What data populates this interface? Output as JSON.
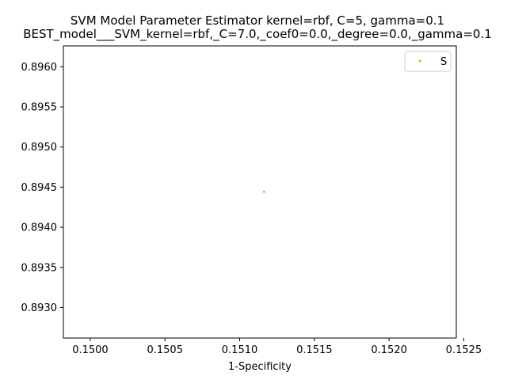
{
  "chart_data": {
    "type": "scatter",
    "title": "SVM Model Parameter Estimator kernel=rbf, C=5, gamma=0.1",
    "subtitle": "BEST_model___SVM_kernel=rbf,_C=7.0,_coef0=0.0,_degree=0.0,_gamma=0.1",
    "xlabel": "1-Specificity",
    "ylabel": "",
    "xlim": [
      0.14982,
      0.15245
    ],
    "ylim": [
      0.89262,
      0.89626
    ],
    "xticks": [
      0.15,
      0.1505,
      0.151,
      0.1515,
      0.152,
      0.1525
    ],
    "xtick_labels": [
      "0.1500",
      "0.1505",
      "0.1510",
      "0.1515",
      "0.1520",
      "0.1525"
    ],
    "yticks": [
      0.893,
      0.8935,
      0.894,
      0.8945,
      0.895,
      0.8955,
      0.896
    ],
    "ytick_labels": [
      "0.8930",
      "0.8935",
      "0.8940",
      "0.8945",
      "0.8950",
      "0.8955",
      "0.8960"
    ],
    "grid": false,
    "legend_position": "top-right",
    "series": [
      {
        "name": "S",
        "color": "#ff9900",
        "points": [
          {
            "x": 0.151163,
            "y": 0.894444
          }
        ]
      }
    ]
  }
}
